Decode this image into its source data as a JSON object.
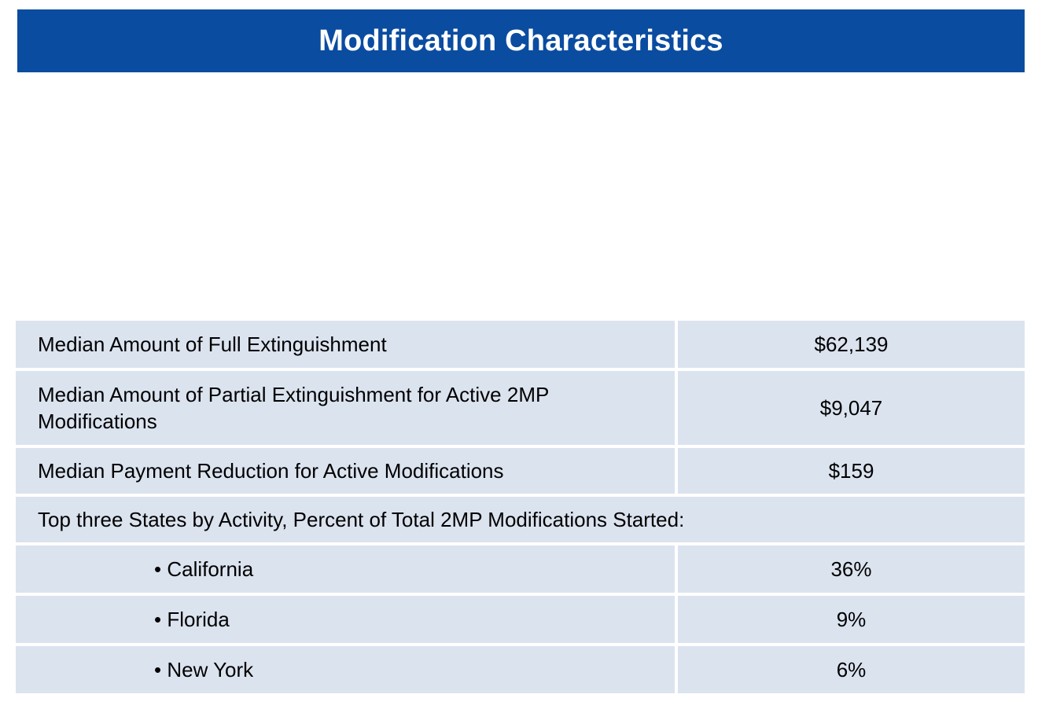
{
  "title": "Modification Characteristics",
  "colors": {
    "header_bg": "#0a4ca0",
    "header_text": "#ffffff",
    "row_bg": "#dbe3ef"
  },
  "rows": [
    {
      "label": "Median Amount of Full Extinguishment",
      "value": "$62,139"
    },
    {
      "label": "Median Amount of Partial Extinguishment for Active 2MP Modifications",
      "value": "$9,047"
    },
    {
      "label": "Median Payment Reduction for Active Modifications",
      "value": "$159"
    }
  ],
  "states_header": "Top three States by Activity, Percent of Total 2MP Modifications Started:",
  "states": [
    {
      "label": "• California",
      "value": "36%"
    },
    {
      "label": "• Florida",
      "value": "9%"
    },
    {
      "label": "• New York",
      "value": "6%"
    }
  ]
}
